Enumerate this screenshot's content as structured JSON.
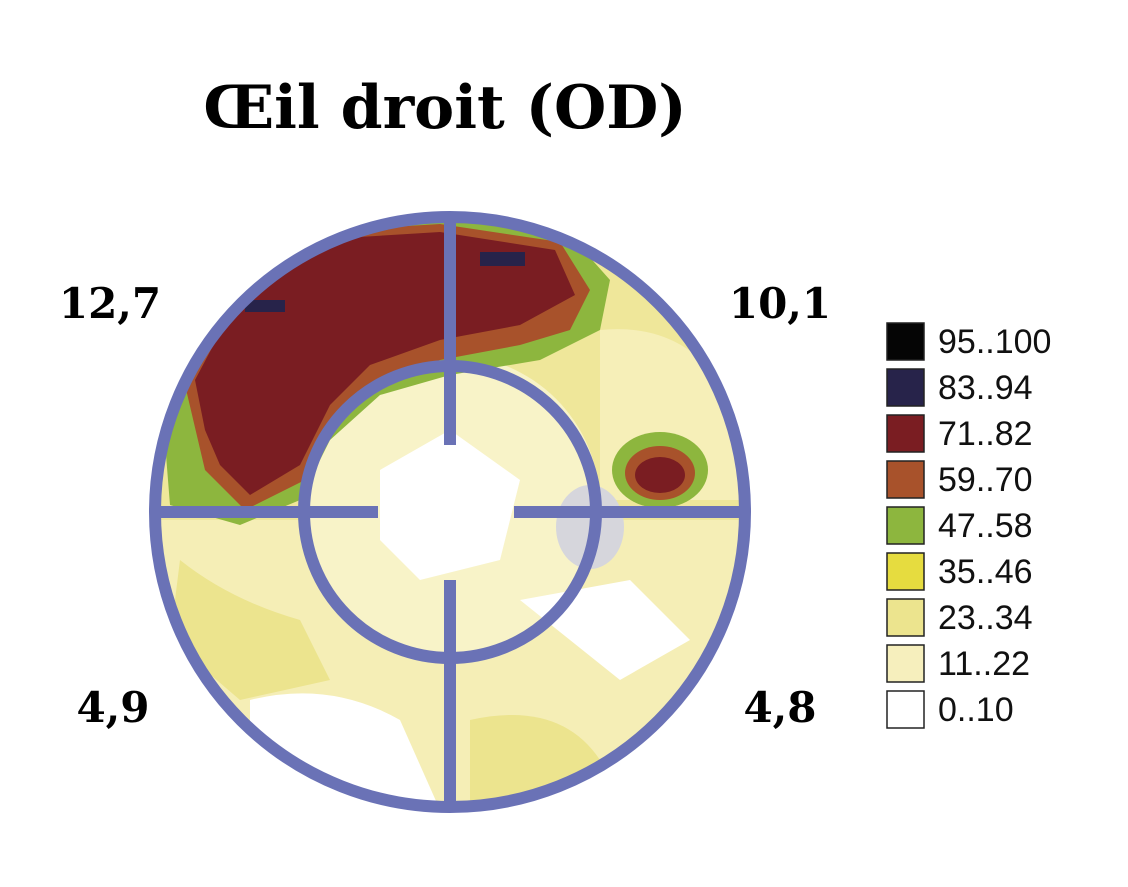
{
  "title": "Œil droit (OD)",
  "quadrants": [
    "12,7",
    "10,1",
    "4,9",
    "4,8"
  ],
  "legend": [
    {
      "label": "95..100",
      "color": "#050505"
    },
    {
      "label": "83..94",
      "color": "#27234a"
    },
    {
      "label": "71..82",
      "color": "#7a1d22"
    },
    {
      "label": "59..70",
      "color": "#a8522b"
    },
    {
      "label": "47..58",
      "color": "#8db63e"
    },
    {
      "label": "35..46",
      "color": "#e6dc3f"
    },
    {
      "label": "23..34",
      "color": "#ece48e"
    },
    {
      "label": "11..22",
      "color": "#f6efbd"
    },
    {
      "label": "0..10",
      "color": "#ffffff"
    }
  ]
}
